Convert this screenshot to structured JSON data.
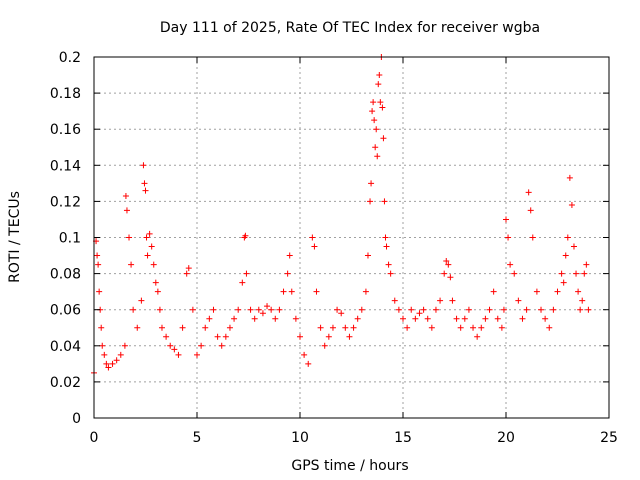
{
  "chart_data": {
    "type": "scatter",
    "title": "Day 111 of 2025, Rate Of TEC Index for receiver wgba",
    "xlabel": "GPS time / hours",
    "ylabel": "ROTI / TECUs",
    "xlim": [
      0,
      25
    ],
    "ylim": [
      0,
      0.2
    ],
    "xticks": [
      0,
      5,
      10,
      15,
      20,
      25
    ],
    "xtick_labels": [
      "0",
      "5",
      "10",
      "15",
      "20",
      "25"
    ],
    "yticks": [
      0,
      0.02,
      0.04,
      0.06,
      0.08,
      0.1,
      0.12,
      0.14,
      0.16,
      0.18,
      0.2
    ],
    "ytick_labels": [
      "0",
      "0.02",
      "0.04",
      "0.06",
      "0.08",
      "0.1",
      "0.12",
      "0.14",
      "0.16",
      "0.18",
      "0.2"
    ],
    "grid": true,
    "marker": "+",
    "color": "#ff0000",
    "series": [
      {
        "name": "ROTI",
        "x": [
          0.0,
          0.1,
          0.15,
          0.2,
          0.25,
          0.3,
          0.35,
          0.4,
          0.5,
          0.6,
          0.7,
          0.9,
          1.1,
          1.3,
          1.5,
          1.55,
          1.6,
          1.7,
          1.8,
          1.9,
          2.1,
          2.3,
          2.4,
          2.45,
          2.5,
          2.55,
          2.6,
          2.7,
          2.8,
          2.9,
          3.0,
          3.1,
          3.2,
          3.3,
          3.5,
          3.7,
          3.9,
          4.1,
          4.3,
          4.5,
          4.6,
          4.8,
          5.0,
          5.2,
          5.4,
          5.6,
          5.8,
          6.0,
          6.2,
          6.4,
          6.6,
          6.8,
          7.0,
          7.2,
          7.3,
          7.35,
          7.4,
          7.6,
          7.8,
          8.0,
          8.2,
          8.4,
          8.6,
          8.8,
          9.0,
          9.2,
          9.4,
          9.5,
          9.6,
          9.8,
          10.0,
          10.2,
          10.4,
          10.6,
          10.7,
          10.8,
          11.0,
          11.2,
          11.4,
          11.6,
          11.8,
          12.0,
          12.2,
          12.4,
          12.6,
          12.8,
          13.0,
          13.2,
          13.3,
          13.4,
          13.45,
          13.5,
          13.55,
          13.6,
          13.65,
          13.7,
          13.75,
          13.8,
          13.85,
          13.9,
          13.95,
          14.0,
          14.05,
          14.1,
          14.15,
          14.2,
          14.3,
          14.4,
          14.6,
          14.8,
          15.0,
          15.2,
          15.4,
          15.6,
          15.8,
          16.0,
          16.2,
          16.4,
          16.6,
          16.8,
          17.0,
          17.1,
          17.2,
          17.3,
          17.4,
          17.6,
          17.8,
          18.0,
          18.2,
          18.4,
          18.6,
          18.8,
          19.0,
          19.2,
          19.4,
          19.6,
          19.8,
          19.9,
          20.0,
          20.1,
          20.2,
          20.4,
          20.6,
          20.8,
          21.0,
          21.1,
          21.2,
          21.3,
          21.5,
          21.7,
          21.9,
          22.1,
          22.3,
          22.5,
          22.7,
          22.8,
          22.9,
          23.0,
          23.1,
          23.2,
          23.3,
          23.4,
          23.5,
          23.6,
          23.7,
          23.8,
          23.9,
          24.0
        ],
        "y": [
          0.025,
          0.098,
          0.09,
          0.085,
          0.07,
          0.06,
          0.05,
          0.04,
          0.035,
          0.03,
          0.028,
          0.03,
          0.032,
          0.035,
          0.04,
          0.123,
          0.115,
          0.1,
          0.085,
          0.06,
          0.05,
          0.065,
          0.14,
          0.13,
          0.126,
          0.1,
          0.09,
          0.102,
          0.095,
          0.085,
          0.075,
          0.07,
          0.06,
          0.05,
          0.045,
          0.04,
          0.038,
          0.035,
          0.05,
          0.08,
          0.083,
          0.06,
          0.035,
          0.04,
          0.05,
          0.055,
          0.06,
          0.045,
          0.04,
          0.045,
          0.05,
          0.055,
          0.06,
          0.075,
          0.1,
          0.101,
          0.08,
          0.06,
          0.055,
          0.06,
          0.058,
          0.062,
          0.06,
          0.055,
          0.06,
          0.07,
          0.08,
          0.09,
          0.07,
          0.055,
          0.045,
          0.035,
          0.03,
          0.1,
          0.095,
          0.07,
          0.05,
          0.04,
          0.045,
          0.05,
          0.06,
          0.058,
          0.05,
          0.045,
          0.05,
          0.055,
          0.06,
          0.07,
          0.09,
          0.12,
          0.13,
          0.17,
          0.175,
          0.165,
          0.15,
          0.16,
          0.145,
          0.185,
          0.19,
          0.175,
          0.2,
          0.172,
          0.155,
          0.12,
          0.1,
          0.095,
          0.085,
          0.08,
          0.065,
          0.06,
          0.055,
          0.05,
          0.06,
          0.055,
          0.058,
          0.06,
          0.055,
          0.05,
          0.06,
          0.065,
          0.08,
          0.087,
          0.085,
          0.078,
          0.065,
          0.055,
          0.05,
          0.055,
          0.06,
          0.05,
          0.045,
          0.05,
          0.055,
          0.06,
          0.07,
          0.055,
          0.05,
          0.06,
          0.11,
          0.1,
          0.085,
          0.08,
          0.065,
          0.055,
          0.06,
          0.125,
          0.115,
          0.1,
          0.07,
          0.06,
          0.055,
          0.05,
          0.06,
          0.07,
          0.08,
          0.075,
          0.09,
          0.1,
          0.133,
          0.118,
          0.095,
          0.08,
          0.07,
          0.06,
          0.065,
          0.08,
          0.085,
          0.06
        ]
      }
    ]
  }
}
